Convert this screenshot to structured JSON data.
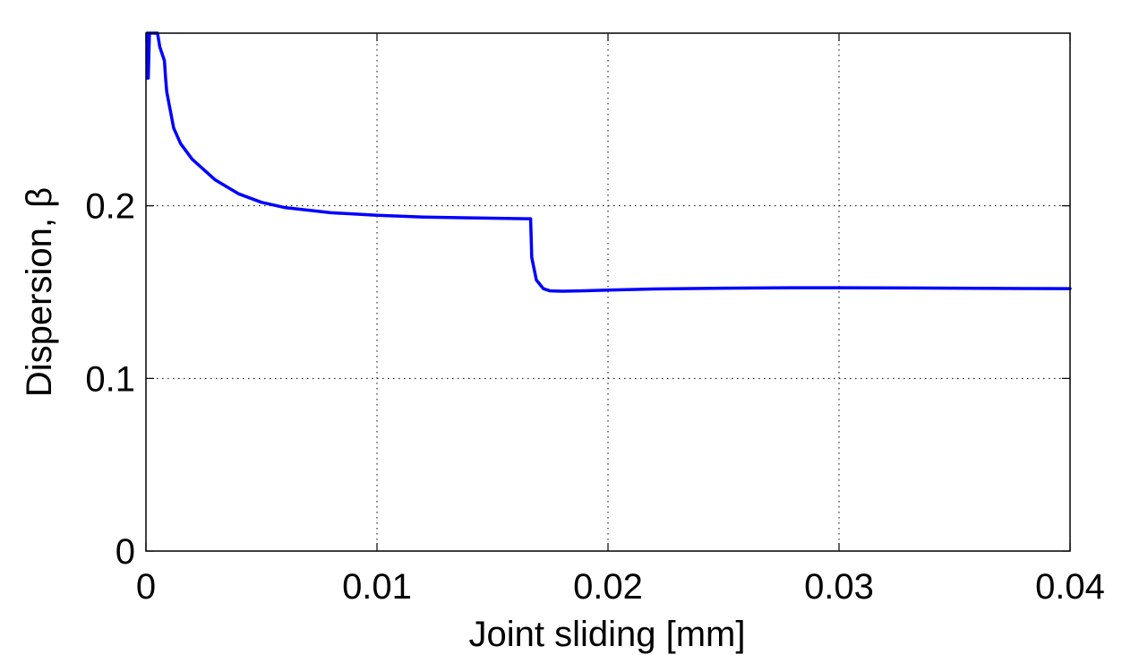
{
  "chart_data": {
    "type": "line",
    "title": "",
    "xlabel": "Joint sliding [mm]",
    "ylabel": "Dispersion, β",
    "xlim": [
      0,
      0.04
    ],
    "ylim": [
      0,
      0.3
    ],
    "x_ticks": [
      0,
      0.01,
      0.02,
      0.03,
      0.04
    ],
    "x_tick_labels": [
      "0",
      "0.01",
      "0.02",
      "0.03",
      "0.04"
    ],
    "y_ticks": [
      0,
      0.1,
      0.2
    ],
    "y_tick_labels": [
      "0",
      "0.1",
      "0.2"
    ],
    "grid": true,
    "legend": null,
    "series": [
      {
        "color": "#0000ff",
        "x": [
          5e-05,
          5e-05,
          0.0001,
          0.0001,
          0.00015,
          0.0005,
          0.0006,
          0.0008,
          0.00085,
          0.0009,
          0.0012,
          0.0015,
          0.002,
          0.003,
          0.004,
          0.005,
          0.006,
          0.007,
          0.008,
          0.01,
          0.012,
          0.014,
          0.0165,
          0.01665,
          0.0167,
          0.0169,
          0.0172,
          0.0175,
          0.018,
          0.019,
          0.02,
          0.022,
          0.025,
          0.028,
          0.03,
          0.033,
          0.035,
          0.038,
          0.04
        ],
        "y": [
          0.274,
          0.3,
          0.3,
          0.274,
          0.3,
          0.3,
          0.292,
          0.284,
          0.274,
          0.266,
          0.245,
          0.236,
          0.227,
          0.215,
          0.207,
          0.202,
          0.199,
          0.1975,
          0.196,
          0.1945,
          0.1935,
          0.193,
          0.1925,
          0.1925,
          0.17,
          0.157,
          0.152,
          0.1507,
          0.1505,
          0.1508,
          0.1512,
          0.1518,
          0.1523,
          0.1525,
          0.1525,
          0.1524,
          0.1523,
          0.1521,
          0.152
        ]
      }
    ]
  }
}
